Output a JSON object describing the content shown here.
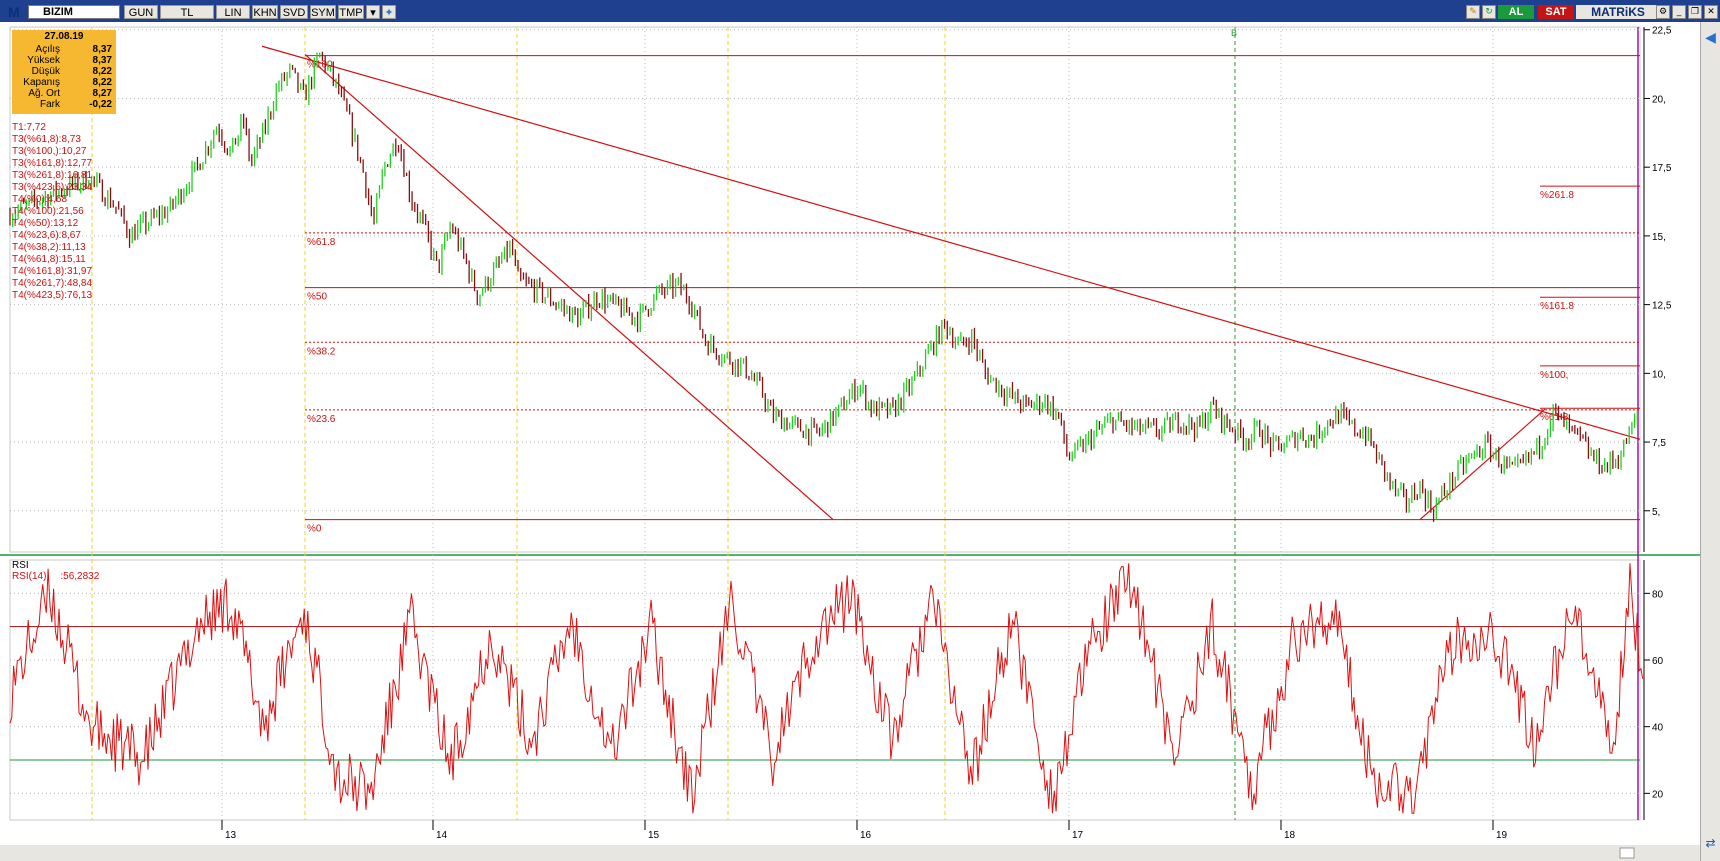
{
  "toolbar": {
    "logo": "M",
    "symbol": "BIZIM",
    "buttons": [
      "GUN",
      "TL",
      "LIN",
      "KHN",
      "SVD",
      "SYM",
      "TMP"
    ],
    "buy_label": "AL",
    "sell_label": "SAT",
    "brand": "MATRiKS",
    "colors": {
      "bar": "#1f3f8f",
      "buy": "#1a9a3a",
      "sell": "#c41414"
    }
  },
  "info": {
    "date": "27.08.19",
    "rows": [
      {
        "label": "Açılış",
        "value": "8,37"
      },
      {
        "label": "Yüksek",
        "value": "8,37"
      },
      {
        "label": "Düşük",
        "value": "8,22"
      },
      {
        "label": "Kapanış",
        "value": "8,22"
      },
      {
        "label": "Ağ. Ort",
        "value": "8,27"
      },
      {
        "label": "Fark",
        "value": "-0,22"
      }
    ]
  },
  "targets": [
    "T1:7,72",
    "T3(%61,8):8,73",
    "T3(%100,):10,27",
    "T3(%161,8):12,77",
    "T3(%261,8):16,81",
    "T3(%423,6):23,34",
    "T4(%0):4,68",
    "T4(%100):21,56",
    "T4(%50):13,12",
    "T4(%23,6):8,67",
    "T4(%38,2):11,13",
    "T4(%61,8):15,11",
    "T4(%161,8):31,97",
    "T4(%261,7):48,84",
    "T4(%423,5):76,13"
  ],
  "rsi": {
    "label": "RSI",
    "series_label": "RSI(14)",
    "value": ":56,2832"
  },
  "chart_data": [
    {
      "type": "candlestick",
      "x_labels": [
        "13",
        "14",
        "15",
        "16",
        "17",
        "18",
        "19"
      ],
      "y_ticks": [
        {
          "v": 5,
          "t": "5,"
        },
        {
          "v": 7.5,
          "t": "7,5"
        },
        {
          "v": 10,
          "t": "10,"
        },
        {
          "v": 12.5,
          "t": "12,5"
        },
        {
          "v": 15,
          "t": "15,"
        },
        {
          "v": 17.5,
          "t": "17,5"
        },
        {
          "v": 20,
          "t": "20,"
        },
        {
          "v": 22.5,
          "t": "22,5"
        }
      ],
      "ylim": [
        3.5,
        22.6
      ],
      "price_path": [
        [
          0,
          15.8
        ],
        [
          0.03,
          16.5
        ],
        [
          0.06,
          17.1
        ],
        [
          0.08,
          16.0
        ],
        [
          0.09,
          15.0
        ],
        [
          0.1,
          15.4
        ],
        [
          0.12,
          16.0
        ],
        [
          0.14,
          17.5
        ],
        [
          0.155,
          19.0
        ],
        [
          0.165,
          18.0
        ],
        [
          0.175,
          19.2
        ],
        [
          0.18,
          17.6
        ],
        [
          0.19,
          18.8
        ],
        [
          0.2,
          20.4
        ],
        [
          0.21,
          21.0
        ],
        [
          0.22,
          20.0
        ],
        [
          0.232,
          21.6
        ],
        [
          0.245,
          20.4
        ],
        [
          0.255,
          19.0
        ],
        [
          0.265,
          17.2
        ],
        [
          0.272,
          15.4
        ],
        [
          0.28,
          17.5
        ],
        [
          0.29,
          18.6
        ],
        [
          0.3,
          16.4
        ],
        [
          0.31,
          15.3
        ],
        [
          0.32,
          13.8
        ],
        [
          0.33,
          15.4
        ],
        [
          0.34,
          14.2
        ],
        [
          0.35,
          12.8
        ],
        [
          0.365,
          13.9
        ],
        [
          0.375,
          14.6
        ],
        [
          0.38,
          13.4
        ],
        [
          0.395,
          13.0
        ],
        [
          0.41,
          12.5
        ],
        [
          0.425,
          12.0
        ],
        [
          0.44,
          12.8
        ],
        [
          0.455,
          12.4
        ],
        [
          0.47,
          12.0
        ],
        [
          0.485,
          12.9
        ],
        [
          0.5,
          13.2
        ],
        [
          0.51,
          12.6
        ],
        [
          0.52,
          11.2
        ],
        [
          0.535,
          10.6
        ],
        [
          0.55,
          10.2
        ],
        [
          0.562,
          9.4
        ],
        [
          0.57,
          8.5
        ],
        [
          0.59,
          8.0
        ],
        [
          0.605,
          7.8
        ],
        [
          0.62,
          8.6
        ],
        [
          0.635,
          9.6
        ],
        [
          0.645,
          8.7
        ],
        [
          0.66,
          8.6
        ],
        [
          0.675,
          9.6
        ],
        [
          0.69,
          11.0
        ],
        [
          0.7,
          11.8
        ],
        [
          0.71,
          11.0
        ],
        [
          0.72,
          11.3
        ],
        [
          0.73,
          10.0
        ],
        [
          0.745,
          9.3
        ],
        [
          0.76,
          8.8
        ],
        [
          0.775,
          9.0
        ],
        [
          0.785,
          8.4
        ],
        [
          0.792,
          6.9
        ],
        [
          0.8,
          7.2
        ],
        [
          0.812,
          7.8
        ],
        [
          0.825,
          8.3
        ],
        [
          0.84,
          8.0
        ],
        [
          0.86,
          7.9
        ],
        [
          0.875,
          8.3
        ],
        [
          0.89,
          8.0
        ],
        [
          0.9,
          8.8
        ],
        [
          0.905,
          8.4
        ],
        [
          0.915,
          8.0
        ],
        [
          0.925,
          7.6
        ],
        [
          0.935,
          8.0
        ],
        [
          0.945,
          7.3
        ],
        [
          0.955,
          7.4
        ],
        [
          0.965,
          7.8
        ],
        [
          0.975,
          7.6
        ],
        [
          0.985,
          8.2
        ],
        [
          0.995,
          8.5
        ],
        [
          1.005,
          8.0
        ],
        [
          1.015,
          7.8
        ],
        [
          1.025,
          6.8
        ],
        [
          1.035,
          5.8
        ],
        [
          1.045,
          5.3
        ],
        [
          1.055,
          5.9
        ],
        [
          1.065,
          5.0
        ],
        [
          1.075,
          5.8
        ],
        [
          1.085,
          6.5
        ],
        [
          1.095,
          7.0
        ],
        [
          1.105,
          7.4
        ],
        [
          1.115,
          6.8
        ],
        [
          1.125,
          6.4
        ],
        [
          1.135,
          6.8
        ],
        [
          1.145,
          7.4
        ],
        [
          1.155,
          8.6
        ],
        [
          1.165,
          8.0
        ],
        [
          1.175,
          7.6
        ],
        [
          1.185,
          6.9
        ],
        [
          1.195,
          6.6
        ],
        [
          1.205,
          7.0
        ],
        [
          1.212,
          7.8
        ],
        [
          1.218,
          8.4
        ]
      ],
      "fib_levels": [
        {
          "label": "%100",
          "value": 21.56
        },
        {
          "label": "%61.8",
          "value": 15.11
        },
        {
          "label": "%50",
          "value": 13.12
        },
        {
          "label": "%38.2",
          "value": 11.13
        },
        {
          "label": "%23.6",
          "value": 8.67
        },
        {
          "label": "%0",
          "value": 4.68
        }
      ],
      "projection_levels": [
        {
          "label": "%261.8",
          "value": 16.81
        },
        {
          "label": "%161.8",
          "value": 12.77
        },
        {
          "label": "%100,",
          "value": 10.27
        },
        {
          "label": "%61.8",
          "value": 8.73
        }
      ],
      "marker_label": "B"
    },
    {
      "type": "line",
      "name": "RSI(14)",
      "y_ticks": [
        20,
        40,
        60,
        80
      ],
      "ylim": [
        12,
        90
      ],
      "levels": [
        30,
        70
      ],
      "key_points": [
        [
          0,
          50
        ],
        [
          0.03,
          80
        ],
        [
          0.06,
          40
        ],
        [
          0.1,
          30
        ],
        [
          0.14,
          70
        ],
        [
          0.165,
          78
        ],
        [
          0.19,
          40
        ],
        [
          0.22,
          75
        ],
        [
          0.245,
          25
        ],
        [
          0.27,
          20
        ],
        [
          0.3,
          72
        ],
        [
          0.33,
          28
        ],
        [
          0.36,
          68
        ],
        [
          0.39,
          35
        ],
        [
          0.42,
          72
        ],
        [
          0.45,
          32
        ],
        [
          0.48,
          70
        ],
        [
          0.51,
          18
        ],
        [
          0.54,
          78
        ],
        [
          0.57,
          30
        ],
        [
          0.6,
          65
        ],
        [
          0.63,
          80
        ],
        [
          0.66,
          35
        ],
        [
          0.69,
          78
        ],
        [
          0.72,
          25
        ],
        [
          0.75,
          72
        ],
        [
          0.78,
          18
        ],
        [
          0.81,
          65
        ],
        [
          0.84,
          85
        ],
        [
          0.87,
          30
        ],
        [
          0.9,
          70
        ],
        [
          0.93,
          22
        ],
        [
          0.96,
          65
        ],
        [
          0.99,
          75
        ],
        [
          1.02,
          25
        ],
        [
          1.05,
          20
        ],
        [
          1.08,
          65
        ],
        [
          1.11,
          70
        ],
        [
          1.14,
          35
        ],
        [
          1.17,
          75
        ],
        [
          1.2,
          30
        ],
        [
          1.212,
          85
        ],
        [
          1.222,
          56
        ]
      ]
    }
  ]
}
